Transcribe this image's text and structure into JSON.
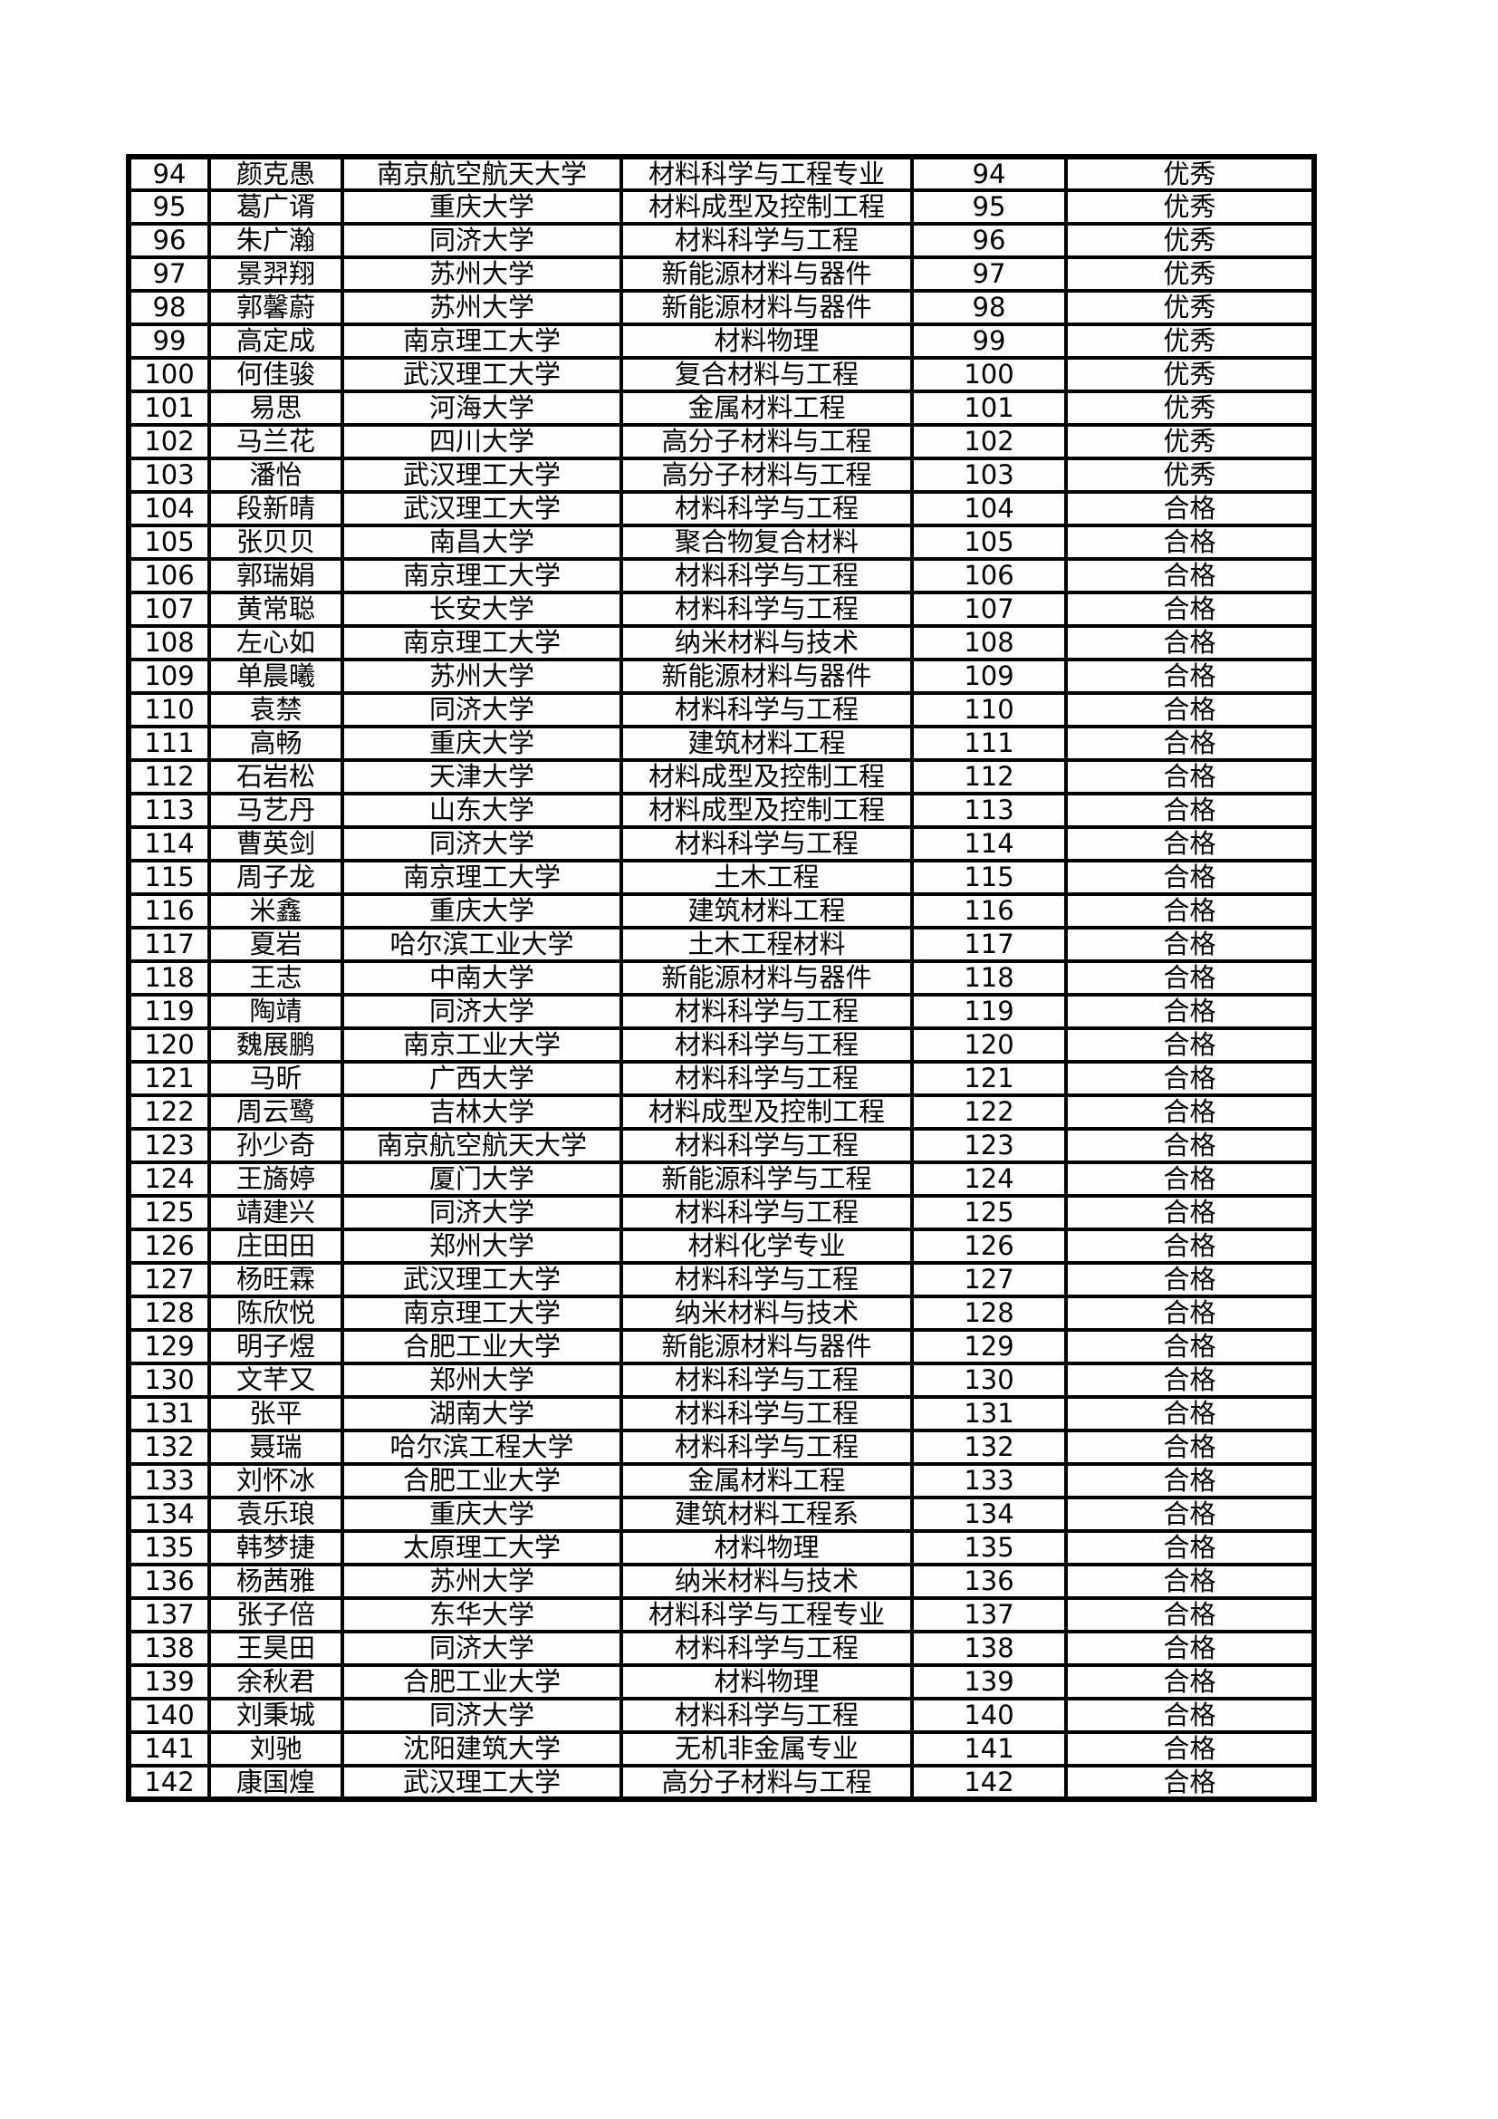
{
  "page": {
    "background": "#ffffff",
    "border_color": "#000000",
    "text_color": "#000000"
  },
  "table": {
    "column_keys": [
      "row_number",
      "student_name",
      "university",
      "major",
      "sequence_number",
      "grade"
    ],
    "grade_values": {
      "excellent": "优秀",
      "pass": "合格"
    },
    "rows": [
      [
        94,
        "颜克愚",
        "南京航空航天大学",
        "材料科学与工程专业",
        94,
        "优秀"
      ],
      [
        95,
        "葛广谞",
        "重庆大学",
        "材料成型及控制工程",
        95,
        "优秀"
      ],
      [
        96,
        "朱广瀚",
        "同济大学",
        "材料科学与工程",
        96,
        "优秀"
      ],
      [
        97,
        "景羿翔",
        "苏州大学",
        "新能源材料与器件",
        97,
        "优秀"
      ],
      [
        98,
        "郭馨蔚",
        "苏州大学",
        "新能源材料与器件",
        98,
        "优秀"
      ],
      [
        99,
        "高定成",
        "南京理工大学",
        "材料物理",
        99,
        "优秀"
      ],
      [
        100,
        "何佳骏",
        "武汉理工大学",
        "复合材料与工程",
        100,
        "优秀"
      ],
      [
        101,
        "易思",
        "河海大学",
        "金属材料工程",
        101,
        "优秀"
      ],
      [
        102,
        "马兰花",
        "四川大学",
        "高分子材料与工程",
        102,
        "优秀"
      ],
      [
        103,
        "潘怡",
        "武汉理工大学",
        "高分子材料与工程",
        103,
        "优秀"
      ],
      [
        104,
        "段新晴",
        "武汉理工大学",
        "材料科学与工程",
        104,
        "合格"
      ],
      [
        105,
        "张贝贝",
        "南昌大学",
        "聚合物复合材料",
        105,
        "合格"
      ],
      [
        106,
        "郭瑞娟",
        "南京理工大学",
        "材料科学与工程",
        106,
        "合格"
      ],
      [
        107,
        "黄常聪",
        "长安大学",
        "材料科学与工程",
        107,
        "合格"
      ],
      [
        108,
        "左心如",
        "南京理工大学",
        "纳米材料与技术",
        108,
        "合格"
      ],
      [
        109,
        "单晨曦",
        "苏州大学",
        "新能源材料与器件",
        109,
        "合格"
      ],
      [
        110,
        "袁禁",
        "同济大学",
        "材料科学与工程",
        110,
        "合格"
      ],
      [
        111,
        "高畅",
        "重庆大学",
        "建筑材料工程",
        111,
        "合格"
      ],
      [
        112,
        "石岩松",
        "天津大学",
        "材料成型及控制工程",
        112,
        "合格"
      ],
      [
        113,
        "马艺丹",
        "山东大学",
        "材料成型及控制工程",
        113,
        "合格"
      ],
      [
        114,
        "曹英剑",
        "同济大学",
        "材料科学与工程",
        114,
        "合格"
      ],
      [
        115,
        "周子龙",
        "南京理工大学",
        "土木工程",
        115,
        "合格"
      ],
      [
        116,
        "米鑫",
        "重庆大学",
        "建筑材料工程",
        116,
        "合格"
      ],
      [
        117,
        "夏岩",
        "哈尔滨工业大学",
        "土木工程材料",
        117,
        "合格"
      ],
      [
        118,
        "王志",
        "中南大学",
        "新能源材料与器件",
        118,
        "合格"
      ],
      [
        119,
        "陶靖",
        "同济大学",
        "材料科学与工程",
        119,
        "合格"
      ],
      [
        120,
        "魏展鹏",
        "南京工业大学",
        "材料科学与工程",
        120,
        "合格"
      ],
      [
        121,
        "马昕",
        "广西大学",
        "材料科学与工程",
        121,
        "合格"
      ],
      [
        122,
        "周云鹭",
        "吉林大学",
        "材料成型及控制工程",
        122,
        "合格"
      ],
      [
        123,
        "孙少奇",
        "南京航空航天大学",
        "材料科学与工程",
        123,
        "合格"
      ],
      [
        124,
        "王旖婷",
        "厦门大学",
        "新能源科学与工程",
        124,
        "合格"
      ],
      [
        125,
        "靖建兴",
        "同济大学",
        "材料科学与工程",
        125,
        "合格"
      ],
      [
        126,
        "庄田田",
        "郑州大学",
        "材料化学专业",
        126,
        "合格"
      ],
      [
        127,
        "杨旺霖",
        "武汉理工大学",
        "材料科学与工程",
        127,
        "合格"
      ],
      [
        128,
        "陈欣悦",
        "南京理工大学",
        "纳米材料与技术",
        128,
        "合格"
      ],
      [
        129,
        "明子煜",
        "合肥工业大学",
        "新能源材料与器件",
        129,
        "合格"
      ],
      [
        130,
        "文芊又",
        "郑州大学",
        "材料科学与工程",
        130,
        "合格"
      ],
      [
        131,
        "张平",
        "湖南大学",
        "材料科学与工程",
        131,
        "合格"
      ],
      [
        132,
        "聂瑞",
        "哈尔滨工程大学",
        "材料科学与工程",
        132,
        "合格"
      ],
      [
        133,
        "刘怀冰",
        "合肥工业大学",
        "金属材料工程",
        133,
        "合格"
      ],
      [
        134,
        "袁乐琅",
        "重庆大学",
        "建筑材料工程系",
        134,
        "合格"
      ],
      [
        135,
        "韩梦捷",
        "太原理工大学",
        "材料物理",
        135,
        "合格"
      ],
      [
        136,
        "杨茜雅",
        "苏州大学",
        "纳米材料与技术",
        136,
        "合格"
      ],
      [
        137,
        "张子倍",
        "东华大学",
        "材料科学与工程专业",
        137,
        "合格"
      ],
      [
        138,
        "王昊田",
        "同济大学",
        "材料科学与工程",
        138,
        "合格"
      ],
      [
        139,
        "余秋君",
        "合肥工业大学",
        "材料物理",
        139,
        "合格"
      ],
      [
        140,
        "刘秉城",
        "同济大学",
        "材料科学与工程",
        140,
        "合格"
      ],
      [
        141,
        "刘驰",
        "沈阳建筑大学",
        "无机非金属专业",
        141,
        "合格"
      ],
      [
        142,
        "康国煌",
        "武汉理工大学",
        "高分子材料与工程",
        142,
        "合格"
      ]
    ]
  }
}
